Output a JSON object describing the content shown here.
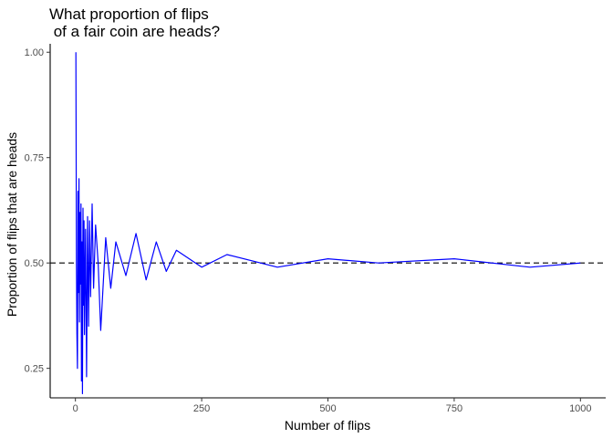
{
  "chart_data": {
    "type": "line",
    "title": "What proportion of flips\n of a fair coin are heads?",
    "xlabel": "Number of flips",
    "ylabel": "Proportion of flips that are heads",
    "xlim": [
      -50,
      1050
    ],
    "ylim": [
      0.18,
      1.02
    ],
    "x_ticks": [
      0,
      250,
      500,
      750,
      1000
    ],
    "x_tick_labels": [
      "0",
      "250",
      "500",
      "750",
      "1000"
    ],
    "y_ticks": [
      0.25,
      0.5,
      0.75,
      1.0
    ],
    "y_tick_labels": [
      "0.25",
      "0.50",
      "0.75",
      "1.00"
    ],
    "reference_line": {
      "y": 0.5,
      "style": "dashed",
      "color": "#000000"
    },
    "grid": false,
    "series_color": "#0000ff",
    "series": [
      {
        "x": [
          1,
          2,
          3,
          4,
          5,
          6,
          7,
          8,
          9,
          10,
          11,
          12,
          13,
          14,
          15,
          16,
          17,
          18,
          20,
          22,
          24,
          26,
          28,
          30,
          33,
          36,
          40,
          45,
          50,
          60,
          70,
          80,
          100,
          120,
          140,
          160,
          180,
          200,
          250,
          300,
          400,
          500,
          600,
          750,
          900,
          1000
        ],
        "y": [
          1.0,
          0.5,
          0.333,
          0.25,
          0.67,
          0.43,
          0.7,
          0.36,
          0.62,
          0.45,
          0.64,
          0.22,
          0.55,
          0.19,
          0.63,
          0.4,
          0.6,
          0.33,
          0.58,
          0.23,
          0.61,
          0.35,
          0.6,
          0.42,
          0.64,
          0.44,
          0.59,
          0.5,
          0.34,
          0.56,
          0.44,
          0.55,
          0.47,
          0.57,
          0.46,
          0.55,
          0.48,
          0.53,
          0.49,
          0.52,
          0.49,
          0.51,
          0.5,
          0.51,
          0.49,
          0.5
        ]
      }
    ]
  }
}
